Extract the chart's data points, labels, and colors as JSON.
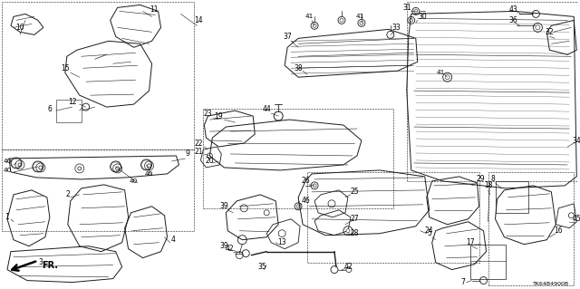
{
  "background_color": "#ffffff",
  "line_color": "#1a1a1a",
  "diagram_code": "TK64B4900B",
  "fig_width": 6.4,
  "fig_height": 3.19,
  "dpi": 100
}
